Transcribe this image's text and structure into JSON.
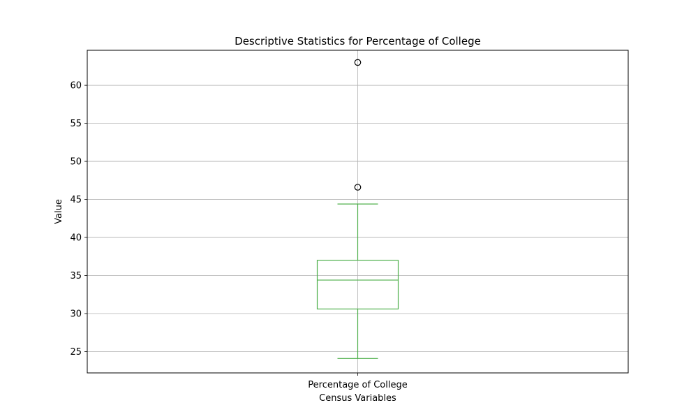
{
  "chart_data": {
    "type": "box",
    "title": "Descriptive Statistics for Percentage of College",
    "xlabel": "Census Variables",
    "ylabel": "Value",
    "categories": [
      "Percentage of College"
    ],
    "boxes": [
      {
        "category": "Percentage of College",
        "whisker_low": 24.1,
        "q1": 30.6,
        "median": 34.4,
        "q3": 37.0,
        "whisker_high": 44.4,
        "outliers": [
          46.6,
          63.0
        ]
      }
    ],
    "ylim": [
      22.2,
      64.6
    ],
    "yticks": [
      25,
      30,
      35,
      40,
      45,
      50,
      55,
      60
    ],
    "grid": true,
    "box_color": "#4daf4a",
    "outlier_color": "#000000"
  }
}
